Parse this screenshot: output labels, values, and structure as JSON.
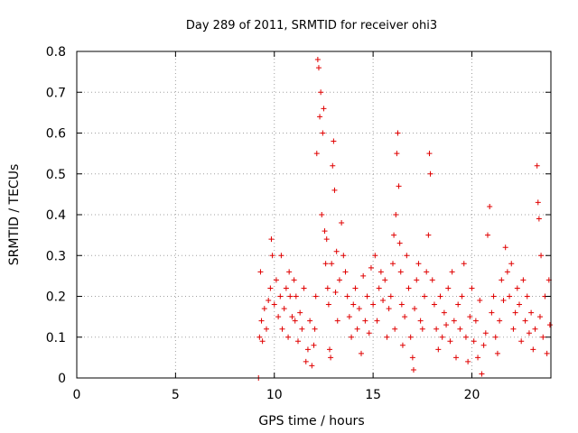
{
  "chart_data": {
    "type": "scatter",
    "title": "Day 289 of 2011, SRMTID for receiver ohi3",
    "xlabel": "GPS time / hours",
    "ylabel": "SRMTID / TECUs",
    "xlim": [
      0,
      24
    ],
    "ylim": [
      0,
      0.8
    ],
    "xticks": [
      "0",
      "5",
      "10",
      "15",
      "20"
    ],
    "yticks": [
      "0",
      "0.1",
      "0.2",
      "0.3",
      "0.4",
      "0.5",
      "0.6",
      "0.7",
      "0.8"
    ],
    "grid": true,
    "marker": "plus",
    "series": [
      {
        "color": "#e00000",
        "x": [
          9.2,
          9.25,
          9.3,
          9.35,
          9.4,
          9.5,
          9.6,
          9.7,
          9.8,
          9.85,
          9.9,
          10.0,
          10.1,
          10.2,
          10.3,
          10.35,
          10.4,
          10.5,
          10.6,
          10.7,
          10.75,
          10.8,
          10.9,
          11.0,
          11.05,
          11.1,
          11.2,
          11.3,
          11.4,
          11.5,
          11.6,
          11.7,
          11.8,
          11.9,
          12.0,
          12.05,
          12.1,
          12.15,
          12.2,
          12.25,
          12.3,
          12.35,
          12.4,
          12.45,
          12.5,
          12.55,
          12.6,
          12.65,
          12.7,
          12.75,
          12.8,
          12.85,
          12.9,
          12.95,
          13.0,
          13.05,
          13.1,
          13.15,
          13.2,
          13.3,
          13.4,
          13.5,
          13.6,
          13.7,
          13.8,
          13.9,
          14.0,
          14.1,
          14.2,
          14.3,
          14.4,
          14.5,
          14.6,
          14.7,
          14.8,
          14.9,
          15.0,
          15.1,
          15.2,
          15.3,
          15.4,
          15.5,
          15.6,
          15.7,
          15.8,
          15.9,
          16.0,
          16.05,
          16.1,
          16.15,
          16.2,
          16.25,
          16.3,
          16.35,
          16.4,
          16.45,
          16.5,
          16.6,
          16.7,
          16.8,
          16.9,
          17.0,
          17.05,
          17.1,
          17.2,
          17.3,
          17.4,
          17.5,
          17.6,
          17.7,
          17.8,
          17.85,
          17.9,
          18.0,
          18.1,
          18.2,
          18.3,
          18.4,
          18.5,
          18.6,
          18.7,
          18.8,
          18.9,
          19.0,
          19.1,
          19.2,
          19.3,
          19.4,
          19.5,
          19.6,
          19.7,
          19.8,
          19.9,
          20.0,
          20.1,
          20.2,
          20.3,
          20.4,
          20.5,
          20.6,
          20.7,
          20.8,
          20.9,
          21.0,
          21.1,
          21.2,
          21.3,
          21.4,
          21.5,
          21.6,
          21.7,
          21.8,
          21.9,
          22.0,
          22.1,
          22.2,
          22.3,
          22.4,
          22.5,
          22.6,
          22.7,
          22.8,
          22.9,
          23.0,
          23.1,
          23.2,
          23.3,
          23.35,
          23.4,
          23.45,
          23.5,
          23.6,
          23.7,
          23.8,
          23.9,
          23.95
        ],
        "y": [
          0.0,
          0.1,
          0.26,
          0.14,
          0.09,
          0.17,
          0.12,
          0.19,
          0.22,
          0.34,
          0.3,
          0.18,
          0.24,
          0.15,
          0.2,
          0.3,
          0.12,
          0.17,
          0.22,
          0.1,
          0.26,
          0.2,
          0.15,
          0.24,
          0.14,
          0.2,
          0.09,
          0.16,
          0.12,
          0.22,
          0.04,
          0.07,
          0.14,
          0.03,
          0.08,
          0.12,
          0.2,
          0.55,
          0.78,
          0.76,
          0.64,
          0.7,
          0.4,
          0.6,
          0.66,
          0.36,
          0.28,
          0.34,
          0.22,
          0.18,
          0.07,
          0.05,
          0.28,
          0.52,
          0.58,
          0.46,
          0.21,
          0.31,
          0.14,
          0.24,
          0.38,
          0.3,
          0.26,
          0.2,
          0.15,
          0.1,
          0.18,
          0.22,
          0.12,
          0.17,
          0.06,
          0.25,
          0.14,
          0.2,
          0.11,
          0.27,
          0.18,
          0.3,
          0.14,
          0.22,
          0.26,
          0.19,
          0.24,
          0.1,
          0.17,
          0.2,
          0.28,
          0.35,
          0.12,
          0.4,
          0.55,
          0.6,
          0.47,
          0.33,
          0.26,
          0.18,
          0.08,
          0.15,
          0.3,
          0.22,
          0.1,
          0.05,
          0.02,
          0.17,
          0.24,
          0.28,
          0.14,
          0.12,
          0.2,
          0.26,
          0.35,
          0.55,
          0.5,
          0.24,
          0.18,
          0.12,
          0.07,
          0.2,
          0.1,
          0.16,
          0.13,
          0.22,
          0.09,
          0.26,
          0.14,
          0.05,
          0.18,
          0.12,
          0.2,
          0.28,
          0.1,
          0.04,
          0.15,
          0.22,
          0.09,
          0.14,
          0.05,
          0.19,
          0.01,
          0.08,
          0.11,
          0.35,
          0.42,
          0.16,
          0.2,
          0.1,
          0.06,
          0.14,
          0.24,
          0.19,
          0.32,
          0.26,
          0.2,
          0.28,
          0.12,
          0.16,
          0.22,
          0.18,
          0.09,
          0.24,
          0.14,
          0.2,
          0.11,
          0.16,
          0.07,
          0.12,
          0.52,
          0.43,
          0.39,
          0.15,
          0.3,
          0.1,
          0.2,
          0.06,
          0.24,
          0.13
        ]
      }
    ]
  }
}
